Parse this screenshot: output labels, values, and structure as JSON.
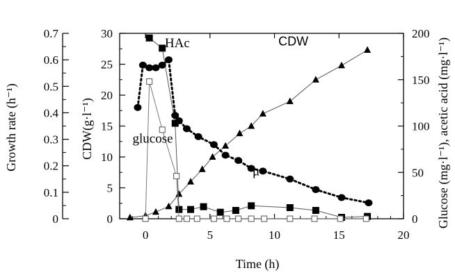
{
  "chart_data": {
    "type": "line",
    "x_axis": {
      "label": "Time (h)",
      "min": -2,
      "max": 20,
      "ticks": [
        0,
        5,
        10,
        15,
        20
      ],
      "tick_labels": [
        "0",
        "5",
        "10",
        "15",
        "20"
      ]
    },
    "y_axes": [
      {
        "id": "growth",
        "label": "Growth rate (h⁻¹)",
        "min": 0,
        "max": 0.7,
        "ticks": [
          0,
          0.1,
          0.2,
          0.3,
          0.4,
          0.5,
          0.6,
          0.7
        ],
        "tick_labels": [
          "0",
          "0.1",
          "0.2",
          "0.3",
          "0.4",
          "0.5",
          "0.6",
          "0.7"
        ]
      },
      {
        "id": "cdw",
        "label": "CDW(g·l⁻¹)",
        "min": 0,
        "max": 30,
        "ticks": [
          0,
          5,
          10,
          15,
          20,
          25,
          30
        ],
        "tick_labels": [
          "0",
          "5",
          "10",
          "15",
          "20",
          "25",
          "30"
        ]
      },
      {
        "id": "conc",
        "label": "Glucose (mg·l⁻¹), acetic acid (mg·l⁻¹)",
        "min": 0,
        "max": 200,
        "ticks": [
          0,
          50,
          100,
          150,
          200
        ],
        "tick_labels": [
          "0",
          "50",
          "100",
          "150",
          "200"
        ]
      }
    ],
    "series": [
      {
        "name": "CDW",
        "axis": "cdw",
        "marker": "triangle",
        "line": "solid",
        "points": [
          [
            -1.2,
            0.2
          ],
          [
            0.0,
            0.5
          ],
          [
            0.8,
            1.1
          ],
          [
            1.8,
            2.0
          ],
          [
            2.6,
            4.0
          ],
          [
            3.5,
            6.0
          ],
          [
            4.4,
            8.0
          ],
          [
            5.2,
            10.0
          ],
          [
            6.2,
            11.8
          ],
          [
            7.3,
            13.8
          ],
          [
            8.2,
            15.0
          ],
          [
            9.1,
            17.0
          ],
          [
            11.2,
            19.0
          ],
          [
            13.2,
            22.5
          ],
          [
            15.2,
            24.8
          ],
          [
            17.2,
            27.3
          ]
        ]
      },
      {
        "name": "HAc",
        "axis": "conc",
        "marker": "square-filled",
        "line": "solid",
        "points": [
          [
            0.3,
            195
          ],
          [
            1.3,
            184
          ],
          [
            2.3,
            103
          ],
          [
            2.6,
            10
          ],
          [
            3.5,
            10
          ],
          [
            4.5,
            13
          ],
          [
            5.8,
            7
          ],
          [
            7.0,
            9
          ],
          [
            8.2,
            14
          ],
          [
            11.2,
            12
          ],
          [
            13.2,
            9
          ],
          [
            15.2,
            1.5
          ],
          [
            17.2,
            2.5
          ]
        ]
      },
      {
        "name": "glucose",
        "axis": "conc",
        "marker": "square-open",
        "line": "solid",
        "points": [
          [
            0.0,
            0
          ],
          [
            0.3,
            148
          ],
          [
            1.3,
            96
          ],
          [
            2.4,
            46
          ],
          [
            2.6,
            0
          ],
          [
            3.2,
            0
          ],
          [
            4.0,
            0
          ],
          [
            5.3,
            0
          ],
          [
            6.3,
            0
          ],
          [
            7.2,
            0
          ],
          [
            8.2,
            0
          ],
          [
            9.2,
            0
          ],
          [
            11.2,
            0
          ],
          [
            13.1,
            0
          ],
          [
            15.1,
            0
          ],
          [
            17.1,
            0
          ]
        ]
      },
      {
        "name": "μ",
        "axis": "growth",
        "marker": "circle-filled",
        "line": "dotted",
        "points": [
          [
            -0.6,
            0.42
          ],
          [
            -0.2,
            0.58
          ],
          [
            0.3,
            0.57
          ],
          [
            0.8,
            0.57
          ],
          [
            1.3,
            0.58
          ],
          [
            1.8,
            0.6
          ],
          [
            2.3,
            0.39
          ],
          [
            2.6,
            0.37
          ],
          [
            3.2,
            0.34
          ],
          [
            4.1,
            0.31
          ],
          [
            5.3,
            0.28
          ],
          [
            6.2,
            0.24
          ],
          [
            7.2,
            0.22
          ],
          [
            8.2,
            0.19
          ],
          [
            9.1,
            0.18
          ],
          [
            11.2,
            0.15
          ],
          [
            13.2,
            0.11
          ],
          [
            15.2,
            0.08
          ],
          [
            17.3,
            0.06
          ]
        ]
      }
    ],
    "annotations": [
      {
        "text": "HAc",
        "x": 1.5,
        "y": 185,
        "axis": "conc"
      },
      {
        "text": "CDW",
        "x": 10.3,
        "y": 187,
        "axis": "conc"
      },
      {
        "text": "glucose",
        "x": -1.0,
        "y": 82,
        "axis": "conc"
      },
      {
        "text": "μ",
        "x": 8.3,
        "y": 47,
        "axis": "conc"
      }
    ],
    "grid": false,
    "legend": "none"
  }
}
